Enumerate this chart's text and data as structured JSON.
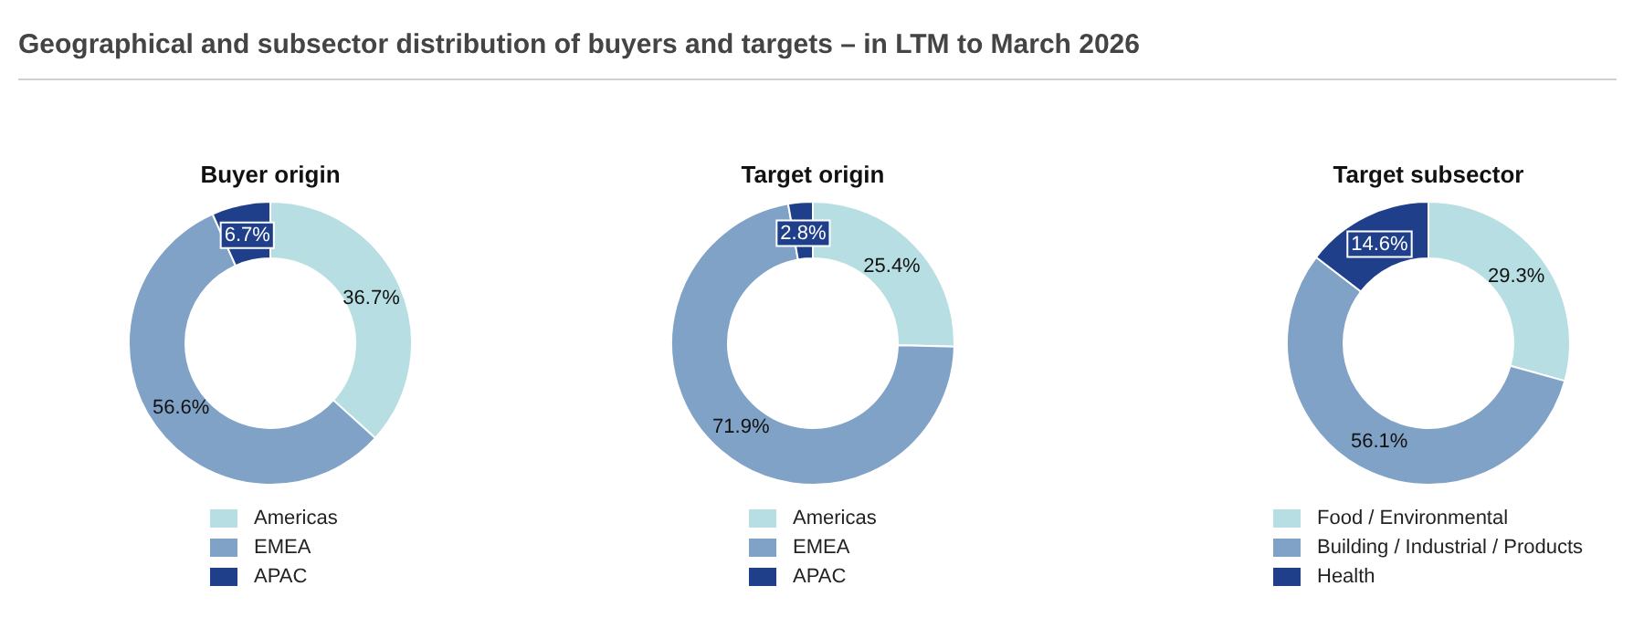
{
  "chart_data": [
    {
      "type": "donut",
      "title": "Buyer origin",
      "annotations": [
        "Geographical and subsector distribution of buyers and targets – in LTM to March 2026"
      ],
      "categories": [
        "Americas",
        "EMEA",
        "APAC"
      ],
      "values": [
        36.7,
        56.6,
        6.7
      ],
      "value_labels": [
        "36.7%",
        "56.6%",
        "6.7%"
      ],
      "colors": [
        "#b7dee2",
        "#7fa2c6",
        "#1f3f8b"
      ],
      "legend": "bottom"
    },
    {
      "type": "donut",
      "title": "Target origin",
      "categories": [
        "Americas",
        "EMEA",
        "APAC"
      ],
      "values": [
        25.4,
        71.9,
        2.8
      ],
      "value_labels": [
        "25.4%",
        "71.9%",
        "2.8%"
      ],
      "colors": [
        "#b7dee2",
        "#7fa2c6",
        "#1f3f8b"
      ],
      "legend": "bottom"
    },
    {
      "type": "donut",
      "title": "Target subsector",
      "categories": [
        "Food / Environmental",
        "Building / Industrial / Products",
        "Health"
      ],
      "values": [
        29.3,
        56.1,
        14.6
      ],
      "value_labels": [
        "29.3%",
        "56.1%",
        "14.6%"
      ],
      "colors": [
        "#b7dee2",
        "#7fa2c6",
        "#1f3f8b"
      ],
      "legend": "bottom"
    }
  ]
}
